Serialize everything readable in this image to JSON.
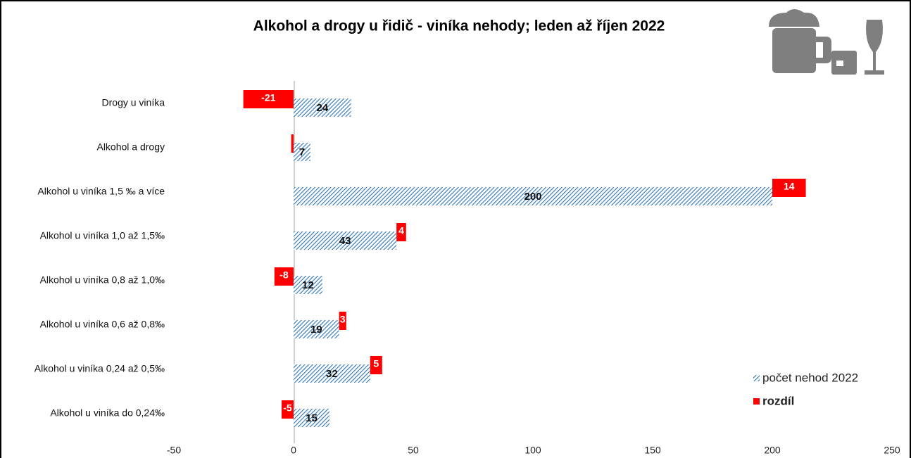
{
  "chart_data": {
    "type": "bar",
    "orientation": "horizontal",
    "title": "Alkohol a drogy u řidič - viníka nehody; leden až říjen 2022",
    "categories": [
      "Drogy u viníka",
      "Alkohol a drogy",
      "Alkohol u viníka 1,5 ‰ a více",
      "Alkohol u viníka 1,0 až 1,5‰",
      "Alkohol u viníka  0,8 až 1,0‰",
      "Alkohol u viníka  0,6 až 0,8‰",
      "Alkohol u viníka  0,24 až 0,5‰",
      "Alkohol u viníka do 0,24‰"
    ],
    "series": [
      {
        "name": "počet nehod 2022",
        "color": "#2e75b6",
        "pattern": "hatch",
        "values": [
          24,
          7,
          200,
          43,
          12,
          19,
          32,
          15
        ]
      },
      {
        "name": "rozdíl",
        "color": "#ff0000",
        "values": [
          -21,
          -1,
          14,
          4,
          -8,
          3,
          5,
          -5
        ],
        "value_labels": [
          "-21",
          null,
          "14",
          "4",
          "-8",
          "3",
          "5",
          "-5"
        ]
      }
    ],
    "xlim": [
      -50,
      250
    ],
    "xticks": [
      -50,
      0,
      50,
      100,
      150,
      200,
      250
    ],
    "legend": "lower right"
  }
}
